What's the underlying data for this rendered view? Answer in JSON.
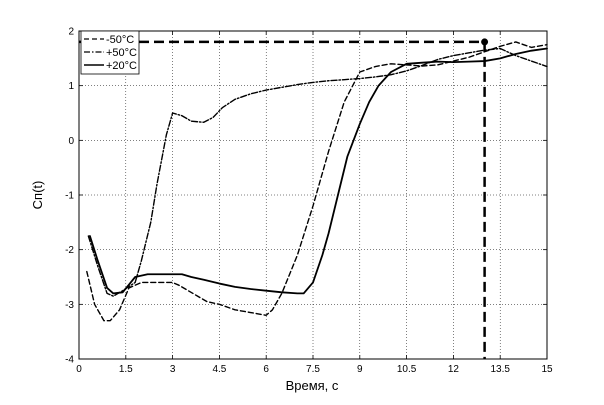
{
  "chart_data": {
    "type": "line",
    "title": "",
    "xlabel": "Время, с",
    "ylabel": "Сп(t)",
    "xlim": [
      0,
      15
    ],
    "ylim": [
      -4,
      2
    ],
    "xticks": [
      0,
      1.5,
      3,
      4.5,
      6,
      7.5,
      9,
      10.5,
      12,
      13.5,
      15
    ],
    "xtick_labels": [
      "0",
      "1.5",
      "3",
      "4.5",
      "6",
      "7.5",
      "9",
      "10.5",
      "12",
      "13.5",
      "15"
    ],
    "yticks": [
      -4,
      -3,
      -2,
      -1,
      0,
      1,
      2
    ],
    "ytick_labels": [
      "-4",
      "-3",
      "-2",
      "-1",
      "0",
      "1",
      "2"
    ],
    "grid": true,
    "legend_position": "top-left",
    "series": [
      {
        "name": "-50°C",
        "style": "dashed",
        "color": "#000000",
        "x": [
          0.25,
          0.5,
          0.8,
          1.0,
          1.3,
          1.6,
          2.0,
          2.5,
          2.8,
          3.0,
          3.2,
          3.5,
          3.8,
          4.1,
          4.5,
          5.0,
          5.5,
          6.0,
          6.2,
          6.5,
          7.0,
          7.5,
          8.0,
          8.5,
          9.0,
          9.5,
          10.0,
          10.5,
          11.0,
          11.5,
          12.0,
          12.5,
          13.0,
          13.5,
          14.0,
          14.5,
          15.0
        ],
        "y": [
          -2.4,
          -3.0,
          -3.3,
          -3.3,
          -3.1,
          -2.7,
          -2.6,
          -2.6,
          -2.6,
          -2.6,
          -2.65,
          -2.75,
          -2.85,
          -2.95,
          -3.0,
          -3.1,
          -3.15,
          -3.2,
          -3.1,
          -2.8,
          -2.1,
          -1.2,
          -0.2,
          0.7,
          1.25,
          1.35,
          1.4,
          1.38,
          1.36,
          1.38,
          1.45,
          1.52,
          1.62,
          1.72,
          1.8,
          1.7,
          1.75
        ]
      },
      {
        "name": "+50°C",
        "style": "dashdot",
        "color": "#000000",
        "x": [
          0.3,
          0.6,
          0.9,
          1.1,
          1.4,
          1.8,
          2.0,
          2.3,
          2.5,
          2.8,
          3.0,
          3.3,
          3.6,
          4.0,
          4.3,
          4.6,
          5.0,
          5.5,
          6.0,
          6.5,
          7.0,
          7.5,
          8.0,
          8.5,
          9.0,
          9.5,
          10.0,
          10.5,
          11.0,
          11.5,
          12.0,
          12.5,
          13.0,
          13.5,
          14.0,
          14.5,
          15.0
        ],
        "y": [
          -1.75,
          -2.3,
          -2.8,
          -2.85,
          -2.75,
          -2.6,
          -2.2,
          -1.5,
          -0.8,
          0.1,
          0.5,
          0.45,
          0.35,
          0.33,
          0.42,
          0.6,
          0.75,
          0.85,
          0.92,
          0.97,
          1.02,
          1.06,
          1.09,
          1.11,
          1.13,
          1.16,
          1.2,
          1.27,
          1.37,
          1.48,
          1.55,
          1.6,
          1.65,
          1.68,
          1.55,
          1.45,
          1.35
        ]
      },
      {
        "name": "+20°C",
        "style": "solid",
        "color": "#000000",
        "x": [
          0.35,
          0.6,
          0.9,
          1.1,
          1.4,
          1.8,
          2.2,
          2.7,
          3.0,
          3.3,
          3.6,
          4.0,
          4.5,
          5.0,
          5.5,
          6.0,
          6.5,
          7.0,
          7.2,
          7.5,
          7.8,
          8.0,
          8.3,
          8.6,
          9.0,
          9.3,
          9.6,
          10.0,
          10.5,
          11.0,
          11.5,
          12.0,
          12.5,
          13.0,
          13.5,
          14.0,
          14.5,
          15.0
        ],
        "y": [
          -1.75,
          -2.2,
          -2.7,
          -2.8,
          -2.78,
          -2.5,
          -2.45,
          -2.45,
          -2.45,
          -2.45,
          -2.5,
          -2.55,
          -2.62,
          -2.68,
          -2.72,
          -2.75,
          -2.78,
          -2.8,
          -2.8,
          -2.6,
          -2.1,
          -1.7,
          -1.0,
          -0.3,
          0.3,
          0.7,
          1.0,
          1.25,
          1.4,
          1.42,
          1.44,
          1.43,
          1.44,
          1.45,
          1.5,
          1.58,
          1.64,
          1.68
        ]
      }
    ],
    "annotations": [
      {
        "type": "marker_with_guides",
        "x": 13.0,
        "y": 1.8,
        "style": "dashed",
        "linewidth": "thick",
        "color": "#000000"
      }
    ]
  }
}
